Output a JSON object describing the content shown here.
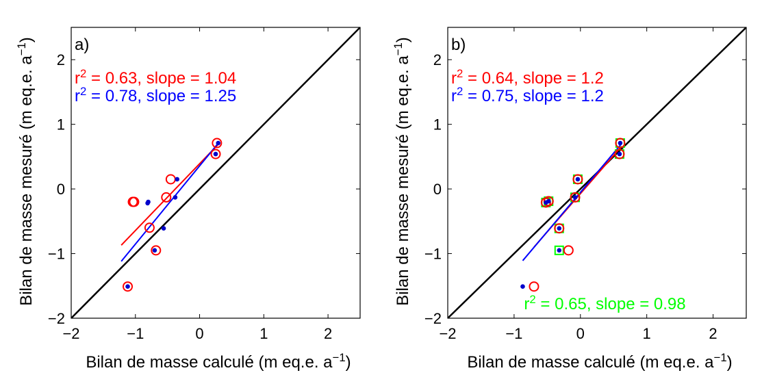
{
  "colors": {
    "red": "#ff0000",
    "blue": "#0000ff",
    "green": "#00ff00",
    "dot_blue": "#0000cc",
    "black": "#000000"
  },
  "chart_data": [
    {
      "type": "scatter",
      "panel_label": "a)",
      "xlabel": "Bilan de masse calculé (m eq.e. a",
      "xlabel_sup": "−1",
      "xlabel_end": ")",
      "ylabel": "Bilan de masse mesuré (m eq.e. a",
      "ylabel_sup": "−1",
      "ylabel_end": ")",
      "xlim": [
        -2,
        2.5
      ],
      "ylim": [
        -2,
        2.5
      ],
      "xticks": [
        -2,
        -1,
        0,
        1,
        2
      ],
      "yticks": [
        -2,
        -1,
        0,
        1,
        2
      ],
      "tick_labels": [
        "−2",
        "−1",
        "0",
        "1",
        "2"
      ],
      "identity_line": true,
      "stats": [
        {
          "pre": "r",
          "sup": "2",
          "post": " = 0.63, slope = 1.04",
          "color": "red"
        },
        {
          "pre": "r",
          "sup": "2",
          "post": " = 0.78, slope = 1.25",
          "color": "blue"
        }
      ],
      "red_circles": [
        [
          -1.12,
          -1.51
        ],
        [
          -1.02,
          -0.2
        ],
        [
          -1.04,
          -0.2
        ],
        [
          -0.68,
          -0.95
        ],
        [
          -0.78,
          -0.6
        ],
        [
          -0.52,
          -0.13
        ],
        [
          -0.45,
          0.15
        ],
        [
          0.25,
          0.54
        ],
        [
          0.27,
          0.71
        ]
      ],
      "blue_dots": [
        [
          -1.12,
          -1.51
        ],
        [
          -0.8,
          -0.2
        ],
        [
          -0.81,
          -0.22
        ],
        [
          -0.7,
          -0.95
        ],
        [
          -0.56,
          -0.61
        ],
        [
          -0.38,
          -0.13
        ],
        [
          -0.35,
          0.15
        ],
        [
          0.25,
          0.54
        ],
        [
          0.29,
          0.71
        ]
      ],
      "red_fit": [
        [
          -1.22,
          -0.87
        ],
        [
          0.3,
          0.7
        ]
      ],
      "blue_fit": [
        [
          -1.22,
          -1.12
        ],
        [
          0.3,
          0.72
        ]
      ]
    },
    {
      "type": "scatter",
      "panel_label": "b)",
      "xlabel": "Bilan de masse calculé (m eq.e. a",
      "xlabel_sup": "−1",
      "xlabel_end": ")",
      "ylabel": "Bilan de masse mesuré (m eq.e. a",
      "ylabel_sup": "−1",
      "ylabel_end": ")",
      "xlim": [
        -2,
        2.5
      ],
      "ylim": [
        -2,
        2.5
      ],
      "xticks": [
        -2,
        -1,
        0,
        1,
        2
      ],
      "yticks": [
        -2,
        -1,
        0,
        1,
        2
      ],
      "tick_labels": [
        "−2",
        "−1",
        "0",
        "1",
        "2"
      ],
      "identity_line": true,
      "stats": [
        {
          "pre": "r",
          "sup": "2",
          "post": " = 0.64, slope = 1.2",
          "color": "red"
        },
        {
          "pre": "r",
          "sup": "2",
          "post": " = 0.75, slope = 1.2",
          "color": "blue"
        }
      ],
      "stats_bottom": {
        "pre": "r",
        "sup": "2",
        "post": " = 0.65, slope = 0.98",
        "color": "green"
      },
      "red_circles": [
        [
          -0.7,
          -1.51
        ],
        [
          -0.18,
          -0.95
        ],
        [
          -0.32,
          -0.61
        ],
        [
          -0.52,
          -0.21
        ],
        [
          -0.48,
          -0.19
        ],
        [
          -0.08,
          -0.13
        ],
        [
          -0.04,
          0.15
        ],
        [
          0.59,
          0.54
        ],
        [
          0.6,
          0.71
        ]
      ],
      "blue_dots": [
        [
          -0.87,
          -1.51
        ],
        [
          -0.32,
          -0.95
        ],
        [
          -0.32,
          -0.61
        ],
        [
          -0.52,
          -0.21
        ],
        [
          -0.48,
          -0.19
        ],
        [
          -0.08,
          -0.13
        ],
        [
          -0.04,
          0.15
        ],
        [
          0.59,
          0.54
        ],
        [
          0.6,
          0.71
        ]
      ],
      "green_squares": [
        [
          -0.32,
          -0.95
        ],
        [
          -0.32,
          -0.61
        ],
        [
          -0.52,
          -0.21
        ],
        [
          -0.48,
          -0.19
        ],
        [
          -0.08,
          -0.13
        ],
        [
          -0.04,
          0.15
        ],
        [
          0.59,
          0.54
        ],
        [
          0.6,
          0.71
        ]
      ],
      "red_fit": [
        [
          -0.7,
          -0.9
        ],
        [
          0.62,
          0.66
        ]
      ],
      "blue_fit": [
        [
          -0.87,
          -1.11
        ],
        [
          0.62,
          0.7
        ]
      ]
    }
  ]
}
